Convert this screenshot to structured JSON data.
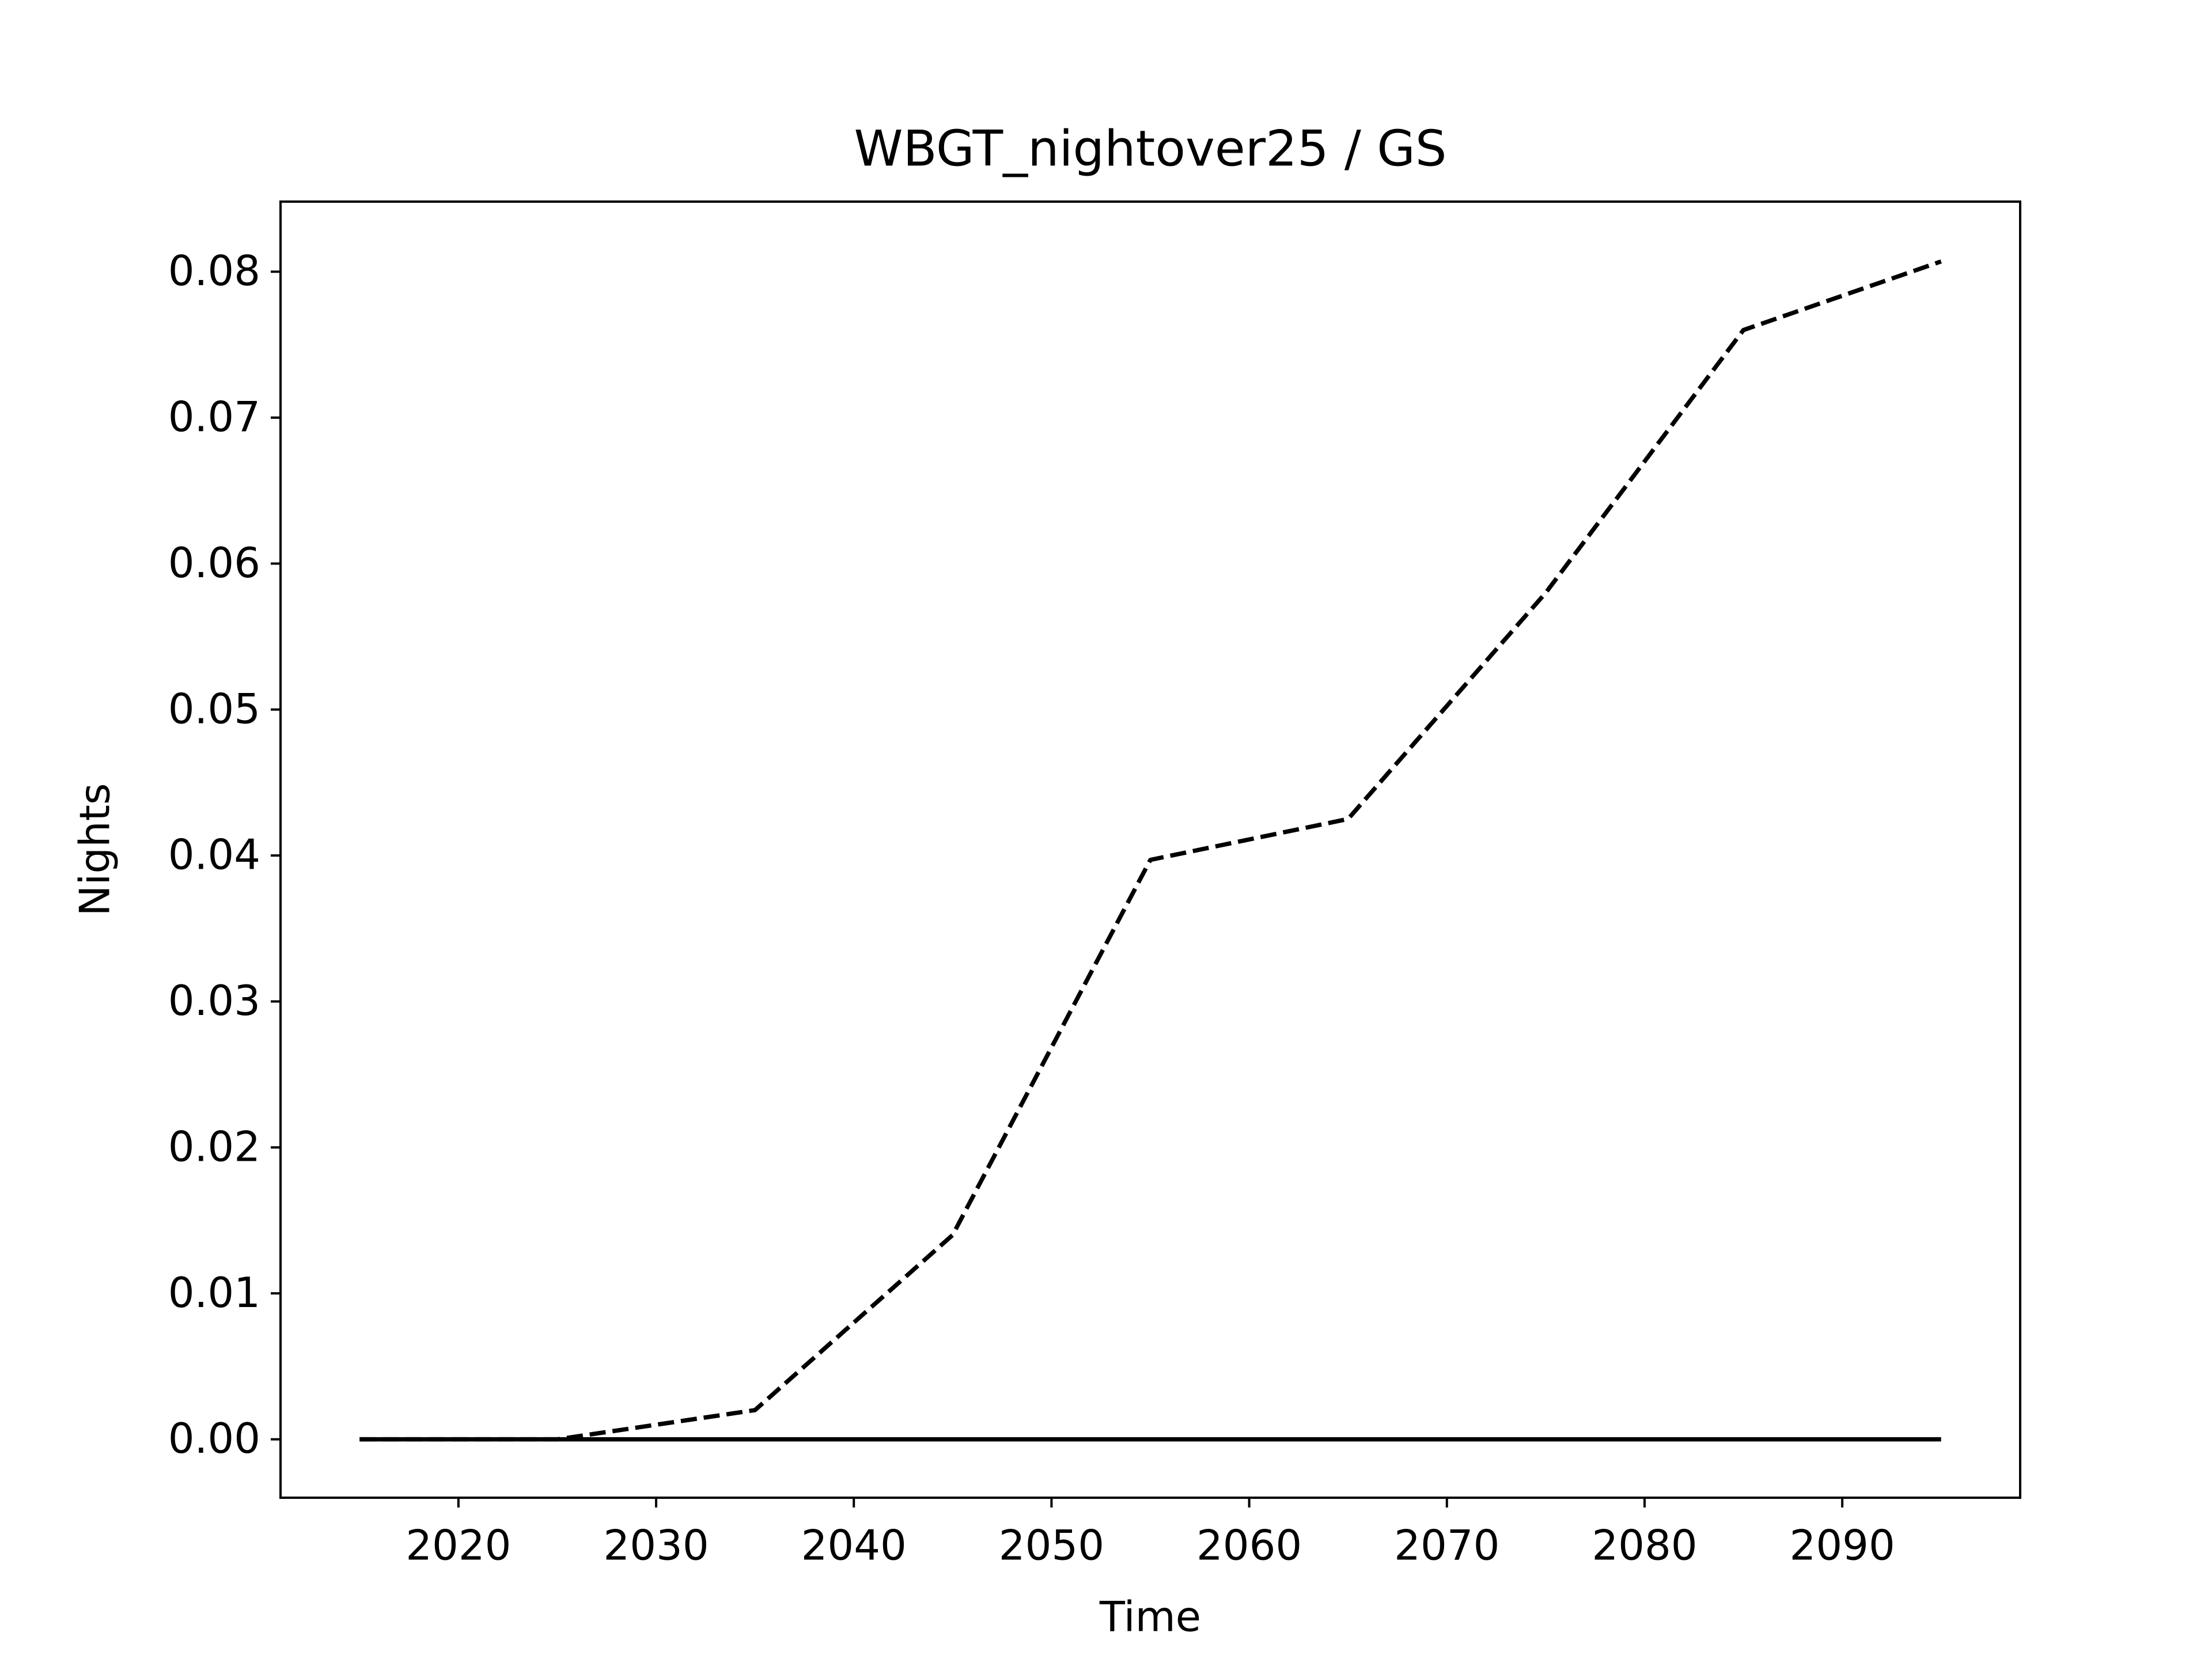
{
  "chart_data": {
    "type": "line",
    "title": "WBGT_nightover25 / GS",
    "xlabel": "Time",
    "ylabel": "Nights",
    "x": [
      2015,
      2025,
      2035,
      2045,
      2055,
      2065,
      2075,
      2085,
      2095
    ],
    "series": [
      {
        "color": "#000000",
        "linestyle": "dashed",
        "values": [
          0,
          0,
          0.002,
          0.014,
          0.0397,
          0.0425,
          0.058,
          0.076,
          0.0807
        ]
      },
      {
        "color": "#000000",
        "linestyle": "solid",
        "values": [
          0,
          0,
          0,
          0,
          0,
          0,
          0,
          0,
          0
        ]
      }
    ],
    "xlim": [
      2011,
      2099
    ],
    "ylim": [
      -0.004,
      0.0848
    ],
    "xticks": [
      2020,
      2030,
      2040,
      2050,
      2060,
      2070,
      2080,
      2090
    ],
    "yticks": [
      {
        "value": 0,
        "label": "0.00"
      },
      {
        "value": 0.01,
        "label": "0.01"
      },
      {
        "value": 0.02,
        "label": "0.02"
      },
      {
        "value": 0.03,
        "label": "0.03"
      },
      {
        "value": 0.04,
        "label": "0.04"
      },
      {
        "value": 0.05,
        "label": "0.05"
      },
      {
        "value": 0.06,
        "label": "0.06"
      },
      {
        "value": 0.07,
        "label": "0.07"
      },
      {
        "value": 0.08,
        "label": "0.08"
      }
    ],
    "grid": false
  }
}
